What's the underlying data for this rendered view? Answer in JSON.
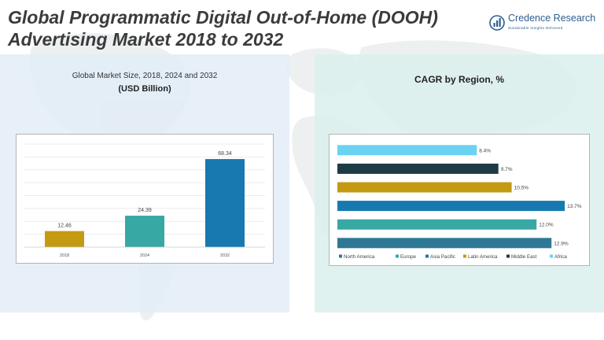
{
  "header": {
    "title_line1": "Global Programmatic Digital Out-of-Home (DOOH)",
    "title_line2": "Advertising Market 2018 to 2032",
    "logo_name": "Credence Research",
    "logo_tagline": "Sustainable Insights Delivered"
  },
  "left_panel": {
    "title": "Global Market Size, 2018, 2024 and 2032",
    "subtitle": "(USD Billion)"
  },
  "right_panel": {
    "title": "CAGR by Region, %"
  },
  "colors": {
    "title": "#3b3b3b",
    "brand": "#2d5f8f",
    "panel_left_bg": "#e2edf6",
    "panel_right_bg": "#daf0ec"
  },
  "chart_data": [
    {
      "type": "bar",
      "categories": [
        "2018",
        "2024",
        "2032"
      ],
      "values": [
        12.46,
        24.39,
        68.34
      ],
      "value_labels": [
        "12.46",
        "24.39",
        "68.34"
      ],
      "colors": [
        "#c49a12",
        "#38a8a4",
        "#1779b0"
      ],
      "ylim": [
        0,
        80
      ],
      "grid": true
    },
    {
      "type": "bar",
      "orientation": "horizontal",
      "categories": [
        "Africa",
        "Middle East",
        "Latin America",
        "Asia Pacific",
        "Europe",
        "North America"
      ],
      "values": [
        8.4,
        9.7,
        10.5,
        13.7,
        12.0,
        12.9
      ],
      "value_labels": [
        "8.4%",
        "9.7%",
        "10.5%",
        "13.7%",
        "12.0%",
        "12.9%"
      ],
      "colors": [
        "#6ad2f2",
        "#1d3b45",
        "#c49a12",
        "#1779b0",
        "#38a8a4",
        "#2f7895"
      ],
      "xlim": [
        0,
        14.5
      ],
      "legend": {
        "position": "bottom",
        "entries": [
          {
            "label": "North America",
            "color": "#2f7895"
          },
          {
            "label": "Europe",
            "color": "#38a8a4"
          },
          {
            "label": "Asia Pacific",
            "color": "#1779b0"
          },
          {
            "label": "Latin America",
            "color": "#c49a12"
          },
          {
            "label": "Middle East",
            "color": "#1d3b45"
          },
          {
            "label": "Africa",
            "color": "#6ad2f2"
          }
        ]
      }
    }
  ]
}
